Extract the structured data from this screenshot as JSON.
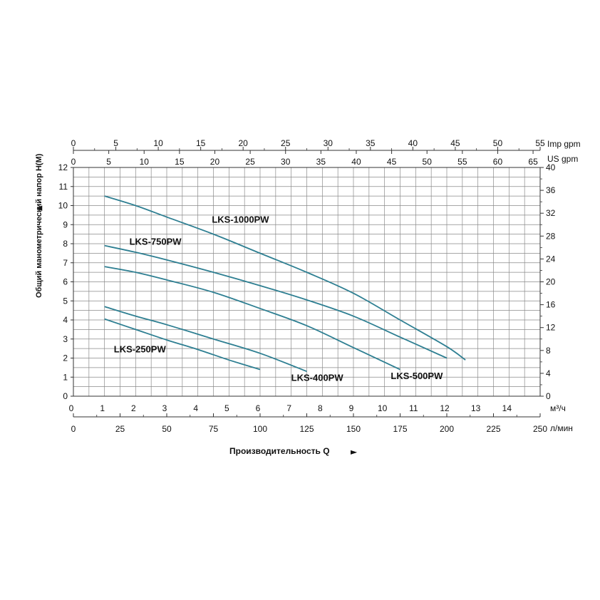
{
  "chart_data": {
    "type": "line",
    "x_axis_main": {
      "unit": "м³/ч",
      "range": [
        0,
        15
      ],
      "ticks": [
        0,
        1,
        2,
        3,
        4,
        5,
        6,
        7,
        8,
        9,
        10,
        11,
        12,
        13,
        14
      ]
    },
    "x_axis_lmin": {
      "unit": "л/мин",
      "range": [
        0,
        250
      ],
      "ticks": [
        0,
        25,
        50,
        75,
        100,
        125,
        150,
        175,
        200,
        225,
        250
      ]
    },
    "x_axis_imp": {
      "unit": "Imp gpm",
      "range": [
        0,
        55
      ],
      "ticks": [
        0,
        5,
        10,
        15,
        20,
        25,
        30,
        35,
        40,
        45,
        50,
        55
      ]
    },
    "x_axis_us": {
      "unit": "US gpm",
      "range": [
        0,
        66
      ],
      "ticks": [
        0,
        5,
        10,
        15,
        20,
        25,
        30,
        35,
        40,
        45,
        50,
        55,
        60,
        65
      ]
    },
    "y_axis_left": {
      "label": "Общий манометрический напор H(M)",
      "range": [
        0,
        12
      ],
      "ticks": [
        0,
        1,
        2,
        3,
        4,
        5,
        6,
        7,
        8,
        9,
        10,
        11,
        12
      ]
    },
    "y_axis_right": {
      "range": [
        0,
        40
      ],
      "ticks": [
        0,
        4,
        8,
        12,
        16,
        20,
        24,
        28,
        32,
        36,
        40
      ]
    },
    "x_title": "Производительность Q",
    "arrow_up": "▲",
    "arrow_right": "►",
    "grid": true,
    "line_color": "#2e7f92",
    "series": [
      {
        "name": "LKS-250PW",
        "x": [
          1,
          2,
          3,
          4,
          5,
          6
        ],
        "y": [
          4.05,
          3.5,
          2.95,
          2.45,
          1.9,
          1.4
        ],
        "label_at": [
          1.3,
          2.3
        ]
      },
      {
        "name": "LKS-400PW",
        "x": [
          1,
          2,
          3,
          4.5,
          6,
          7.5
        ],
        "y": [
          4.7,
          4.2,
          3.75,
          3.0,
          2.25,
          1.3
        ],
        "label_at": [
          7.0,
          0.8
        ]
      },
      {
        "name": "LKS-500PW",
        "x": [
          1,
          2,
          3,
          4.5,
          6,
          7.5,
          9,
          10.5
        ],
        "y": [
          6.8,
          6.5,
          6.1,
          5.45,
          4.6,
          3.7,
          2.55,
          1.4
        ],
        "label_at": [
          10.2,
          0.9
        ]
      },
      {
        "name": "LKS-750PW",
        "x": [
          1,
          2,
          3,
          4.5,
          6,
          7.5,
          9,
          10.5,
          12
        ],
        "y": [
          7.9,
          7.55,
          7.15,
          6.5,
          5.8,
          5.05,
          4.2,
          3.1,
          2.0
        ],
        "label_at": [
          1.8,
          7.95
        ]
      },
      {
        "name": "LKS-1000PW",
        "x": [
          1,
          2,
          3,
          4.5,
          6,
          7.5,
          9,
          10.5,
          12,
          12.6
        ],
        "y": [
          10.5,
          10.0,
          9.4,
          8.5,
          7.5,
          6.5,
          5.4,
          4.0,
          2.6,
          1.9
        ],
        "label_at": [
          4.45,
          9.1
        ]
      }
    ]
  }
}
